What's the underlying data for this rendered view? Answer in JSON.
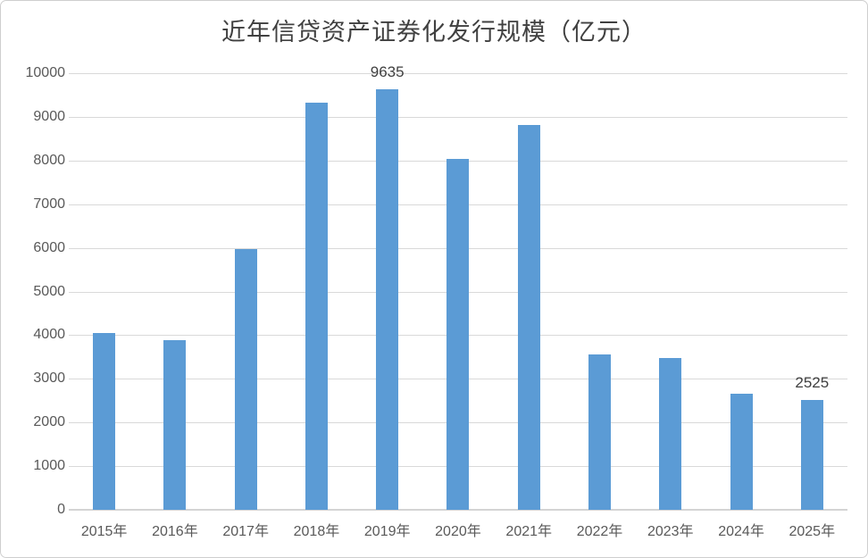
{
  "chart_data": {
    "type": "bar",
    "title": "近年信贷资产证券化发行规模（亿元）",
    "categories": [
      "2015年",
      "2016年",
      "2017年",
      "2018年",
      "2019年",
      "2020年",
      "2021年",
      "2022年",
      "2023年",
      "2024年",
      "2025年"
    ],
    "values": [
      4050,
      3880,
      5970,
      9320,
      9635,
      8040,
      8810,
      3560,
      3480,
      2650,
      2525
    ],
    "point_labels": [
      "",
      "",
      "",
      "",
      "9635",
      "",
      "",
      "",
      "",
      "",
      "2525"
    ],
    "xlabel": "",
    "ylabel": "",
    "ylim": [
      0,
      10000
    ],
    "ytick_interval": 1000,
    "yticks": [
      "0",
      "1000",
      "2000",
      "3000",
      "4000",
      "5000",
      "6000",
      "7000",
      "8000",
      "9000",
      "10000"
    ],
    "grid": true,
    "legend": false
  },
  "colors": {
    "bar": "#5b9bd5",
    "gridline": "#d9d9d9",
    "axis_line": "#d4d4d4",
    "tick_label": "#595959",
    "data_label": "#404040",
    "title": "#404040",
    "border": "#cfcfcf",
    "background": "#ffffff"
  }
}
